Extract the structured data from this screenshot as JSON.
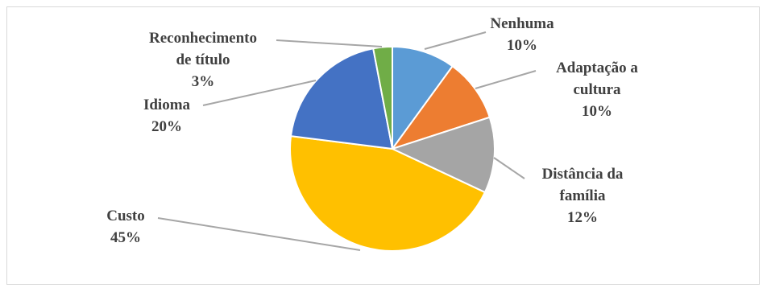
{
  "chart_data": {
    "type": "pie",
    "title": "",
    "slices": [
      {
        "label_lines": [
          "Nenhuma"
        ],
        "pct_text": "10%",
        "value": 10,
        "color": "#5b9bd5"
      },
      {
        "label_lines": [
          "Adaptação a",
          "cultura"
        ],
        "pct_text": "10%",
        "value": 10,
        "color": "#ed7d31"
      },
      {
        "label_lines": [
          "Distância da",
          "família"
        ],
        "pct_text": "12%",
        "value": 12,
        "color": "#a5a5a5"
      },
      {
        "label_lines": [
          "Custo"
        ],
        "pct_text": "45%",
        "value": 45,
        "color": "#ffc000"
      },
      {
        "label_lines": [
          "Idioma"
        ],
        "pct_text": "20%",
        "value": 20,
        "color": "#4472c4"
      },
      {
        "label_lines": [
          "Reconhecimento",
          "de título"
        ],
        "pct_text": "3%",
        "value": 3,
        "color": "#70ad47"
      }
    ]
  }
}
